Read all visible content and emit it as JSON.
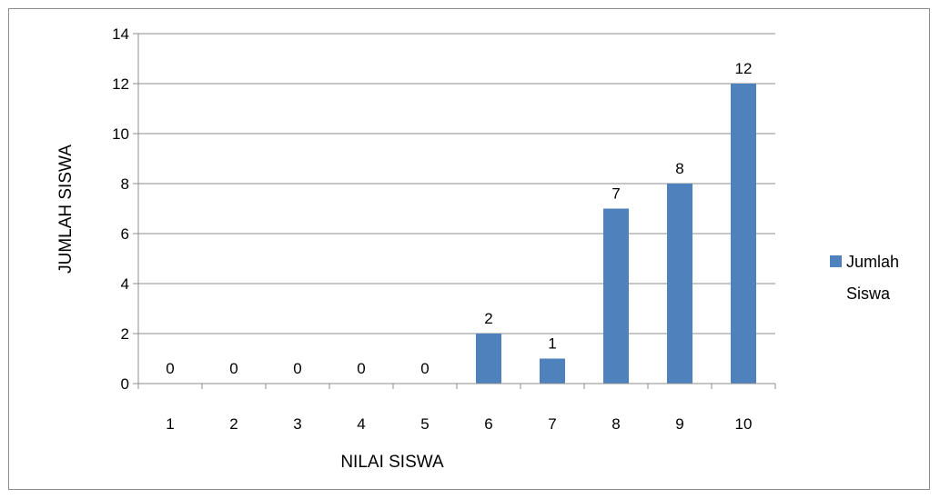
{
  "chart_data": {
    "type": "bar",
    "categories": [
      "1",
      "2",
      "3",
      "4",
      "5",
      "6",
      "7",
      "8",
      "9",
      "10"
    ],
    "series": [
      {
        "name": "Jumlah Siswa",
        "values": [
          0,
          0,
          0,
          0,
          0,
          2,
          1,
          7,
          8,
          12
        ],
        "color": "#4f81bd"
      }
    ],
    "data_labels": [
      "0",
      "0",
      "0",
      "0",
      "0",
      "2",
      "1",
      "7",
      "8",
      "12"
    ],
    "xlabel": "NILAI SISWA",
    "ylabel": "JUMLAH SISWA",
    "ylim": [
      0,
      14
    ],
    "yticks": [
      "0",
      "2",
      "4",
      "6",
      "8",
      "10",
      "12",
      "14"
    ],
    "grid": true,
    "legend_position": "right",
    "legend_lines": [
      "Jumlah",
      "Siswa"
    ]
  }
}
